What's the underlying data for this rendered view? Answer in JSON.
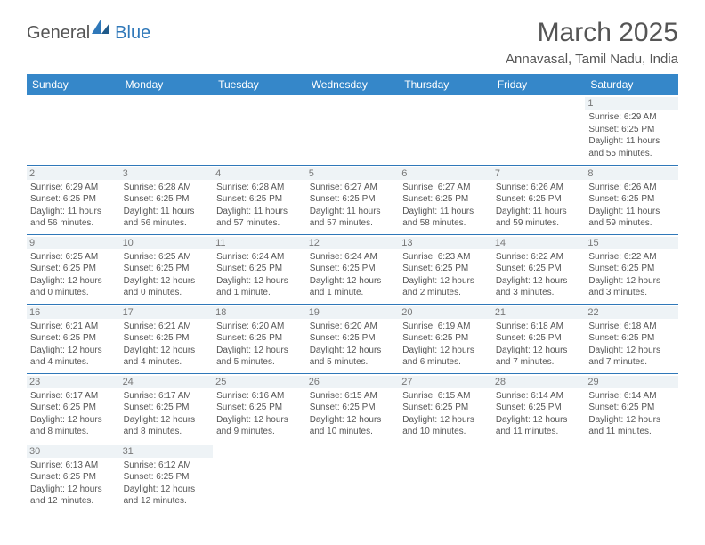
{
  "logo": {
    "general": "General",
    "blue": "Blue"
  },
  "header": {
    "title": "March 2025",
    "location": "Annavasal, Tamil Nadu, India"
  },
  "colors": {
    "header_bg": "#3587c9",
    "header_text": "#ffffff",
    "cell_border": "#2f78b9",
    "daynum_bg": "#eef3f6",
    "text": "#555555"
  },
  "weekdays": [
    "Sunday",
    "Monday",
    "Tuesday",
    "Wednesday",
    "Thursday",
    "Friday",
    "Saturday"
  ],
  "labels": {
    "sunrise": "Sunrise:",
    "sunset": "Sunset:",
    "daylight": "Daylight:"
  },
  "days": {
    "1": {
      "sunrise": "6:29 AM",
      "sunset": "6:25 PM",
      "daylight": "11 hours and 55 minutes."
    },
    "2": {
      "sunrise": "6:29 AM",
      "sunset": "6:25 PM",
      "daylight": "11 hours and 56 minutes."
    },
    "3": {
      "sunrise": "6:28 AM",
      "sunset": "6:25 PM",
      "daylight": "11 hours and 56 minutes."
    },
    "4": {
      "sunrise": "6:28 AM",
      "sunset": "6:25 PM",
      "daylight": "11 hours and 57 minutes."
    },
    "5": {
      "sunrise": "6:27 AM",
      "sunset": "6:25 PM",
      "daylight": "11 hours and 57 minutes."
    },
    "6": {
      "sunrise": "6:27 AM",
      "sunset": "6:25 PM",
      "daylight": "11 hours and 58 minutes."
    },
    "7": {
      "sunrise": "6:26 AM",
      "sunset": "6:25 PM",
      "daylight": "11 hours and 59 minutes."
    },
    "8": {
      "sunrise": "6:26 AM",
      "sunset": "6:25 PM",
      "daylight": "11 hours and 59 minutes."
    },
    "9": {
      "sunrise": "6:25 AM",
      "sunset": "6:25 PM",
      "daylight": "12 hours and 0 minutes."
    },
    "10": {
      "sunrise": "6:25 AM",
      "sunset": "6:25 PM",
      "daylight": "12 hours and 0 minutes."
    },
    "11": {
      "sunrise": "6:24 AM",
      "sunset": "6:25 PM",
      "daylight": "12 hours and 1 minute."
    },
    "12": {
      "sunrise": "6:24 AM",
      "sunset": "6:25 PM",
      "daylight": "12 hours and 1 minute."
    },
    "13": {
      "sunrise": "6:23 AM",
      "sunset": "6:25 PM",
      "daylight": "12 hours and 2 minutes."
    },
    "14": {
      "sunrise": "6:22 AM",
      "sunset": "6:25 PM",
      "daylight": "12 hours and 3 minutes."
    },
    "15": {
      "sunrise": "6:22 AM",
      "sunset": "6:25 PM",
      "daylight": "12 hours and 3 minutes."
    },
    "16": {
      "sunrise": "6:21 AM",
      "sunset": "6:25 PM",
      "daylight": "12 hours and 4 minutes."
    },
    "17": {
      "sunrise": "6:21 AM",
      "sunset": "6:25 PM",
      "daylight": "12 hours and 4 minutes."
    },
    "18": {
      "sunrise": "6:20 AM",
      "sunset": "6:25 PM",
      "daylight": "12 hours and 5 minutes."
    },
    "19": {
      "sunrise": "6:20 AM",
      "sunset": "6:25 PM",
      "daylight": "12 hours and 5 minutes."
    },
    "20": {
      "sunrise": "6:19 AM",
      "sunset": "6:25 PM",
      "daylight": "12 hours and 6 minutes."
    },
    "21": {
      "sunrise": "6:18 AM",
      "sunset": "6:25 PM",
      "daylight": "12 hours and 7 minutes."
    },
    "22": {
      "sunrise": "6:18 AM",
      "sunset": "6:25 PM",
      "daylight": "12 hours and 7 minutes."
    },
    "23": {
      "sunrise": "6:17 AM",
      "sunset": "6:25 PM",
      "daylight": "12 hours and 8 minutes."
    },
    "24": {
      "sunrise": "6:17 AM",
      "sunset": "6:25 PM",
      "daylight": "12 hours and 8 minutes."
    },
    "25": {
      "sunrise": "6:16 AM",
      "sunset": "6:25 PM",
      "daylight": "12 hours and 9 minutes."
    },
    "26": {
      "sunrise": "6:15 AM",
      "sunset": "6:25 PM",
      "daylight": "12 hours and 10 minutes."
    },
    "27": {
      "sunrise": "6:15 AM",
      "sunset": "6:25 PM",
      "daylight": "12 hours and 10 minutes."
    },
    "28": {
      "sunrise": "6:14 AM",
      "sunset": "6:25 PM",
      "daylight": "12 hours and 11 minutes."
    },
    "29": {
      "sunrise": "6:14 AM",
      "sunset": "6:25 PM",
      "daylight": "12 hours and 11 minutes."
    },
    "30": {
      "sunrise": "6:13 AM",
      "sunset": "6:25 PM",
      "daylight": "12 hours and 12 minutes."
    },
    "31": {
      "sunrise": "6:12 AM",
      "sunset": "6:25 PM",
      "daylight": "12 hours and 12 minutes."
    }
  },
  "layout": {
    "first_day_column": 6,
    "num_days": 31,
    "rows": 6
  }
}
